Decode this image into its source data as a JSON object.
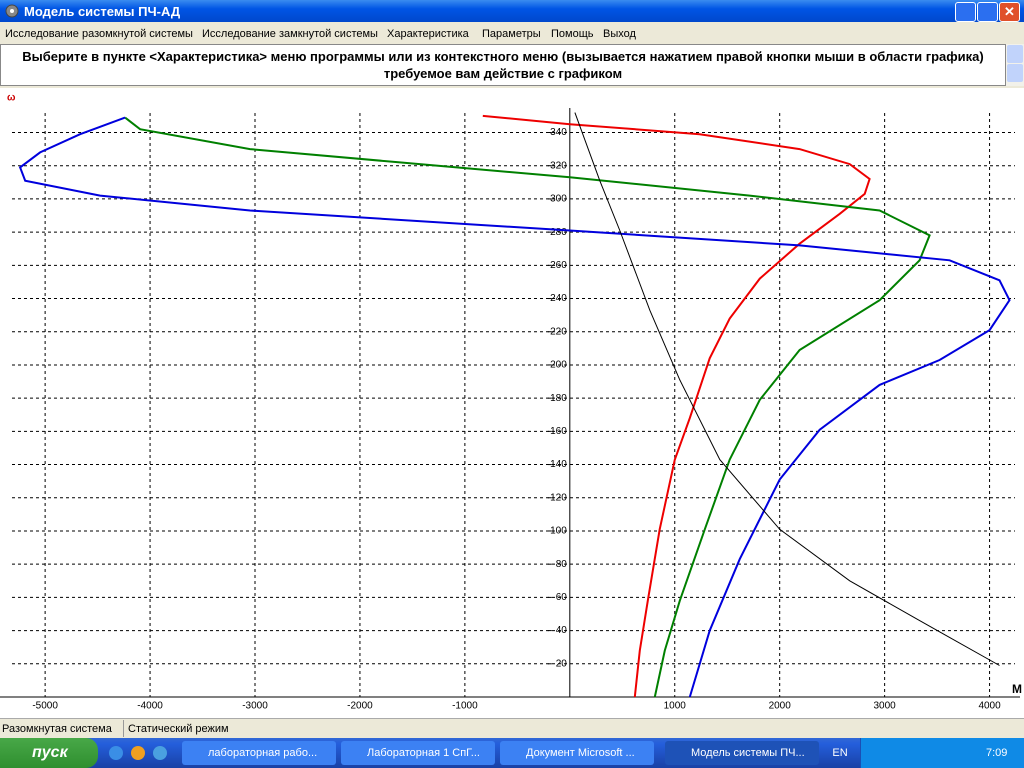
{
  "window": {
    "title": "Модель системы ПЧ-АД"
  },
  "menu": [
    "Исследование разомкнутой системы",
    "Исследование замкнутой системы",
    "Характеристика",
    "Параметры",
    "Помощь",
    "Выход"
  ],
  "message": [
    "Выберите в пункте <Характеристика> меню программы или из контекстного меню (вызывается нажатием правой кнопки мыши в области графика)",
    "требуемое вам действие с графиком"
  ],
  "chart_data": {
    "type": "line",
    "y_label": "ω",
    "x_label": "M",
    "xlim": [
      -5430,
      4290
    ],
    "ylim": [
      0,
      365
    ],
    "xticks": [
      -5000,
      -4000,
      -3000,
      -2000,
      -1000,
      1000,
      2000,
      3000,
      4000
    ],
    "yticks": [
      20,
      40,
      60,
      80,
      100,
      120,
      140,
      160,
      180,
      200,
      220,
      240,
      260,
      280,
      300,
      320,
      340
    ],
    "grid": true,
    "series": [
      {
        "color": "#ee0000",
        "x": [
          -829,
          0,
          1238,
          2190,
          2667,
          2857,
          2810,
          2571,
          2190,
          1810,
          1524,
          1333,
          1143,
          1000,
          857,
          743,
          667,
          619
        ],
        "values": [
          350,
          345,
          339,
          330,
          321,
          312,
          303,
          291,
          273,
          252,
          228,
          204,
          168,
          143,
          101,
          58,
          28,
          0
        ]
      },
      {
        "color": "#008000",
        "x": [
          -4238,
          -4095,
          -3048,
          -1619,
          0,
          1714,
          2952,
          3429,
          3333,
          2952,
          2190,
          1810,
          1524,
          1286,
          1048,
          905,
          810
        ],
        "values": [
          349,
          342,
          330,
          322,
          313,
          302,
          293,
          278,
          263,
          239,
          209,
          179,
          143,
          101,
          58,
          28,
          0
        ]
      },
      {
        "color": "#0000dd",
        "x": [
          -4238,
          -4667,
          -5048,
          -5238,
          -5190,
          -4476,
          -3048,
          0,
          2190,
          3619,
          4095,
          4190,
          4000,
          3524,
          2952,
          2381,
          2000,
          1619,
          1333,
          1143
        ],
        "values": [
          349,
          339,
          328,
          319,
          311,
          302,
          293,
          281,
          272,
          263,
          251,
          239,
          221,
          203,
          188,
          161,
          131,
          83,
          40,
          0
        ]
      },
      {
        "color": "#000000",
        "x": [
          48,
          286,
          476,
          762,
          1048,
          1429,
          2000,
          2667,
          3333,
          4095
        ],
        "values": [
          352,
          311,
          281,
          233,
          191,
          143,
          101,
          70,
          46,
          19
        ]
      }
    ]
  },
  "status": [
    "Разомкнутая система",
    "Статический режим"
  ],
  "taskbar": {
    "start": "пуск",
    "tasks": [
      "лабораторная рабо...",
      "Лабораторная 1 СпГ...",
      "Документ Microsoft ...",
      "Модель системы ПЧ..."
    ],
    "lang": "EN",
    "clock": "7:09"
  }
}
